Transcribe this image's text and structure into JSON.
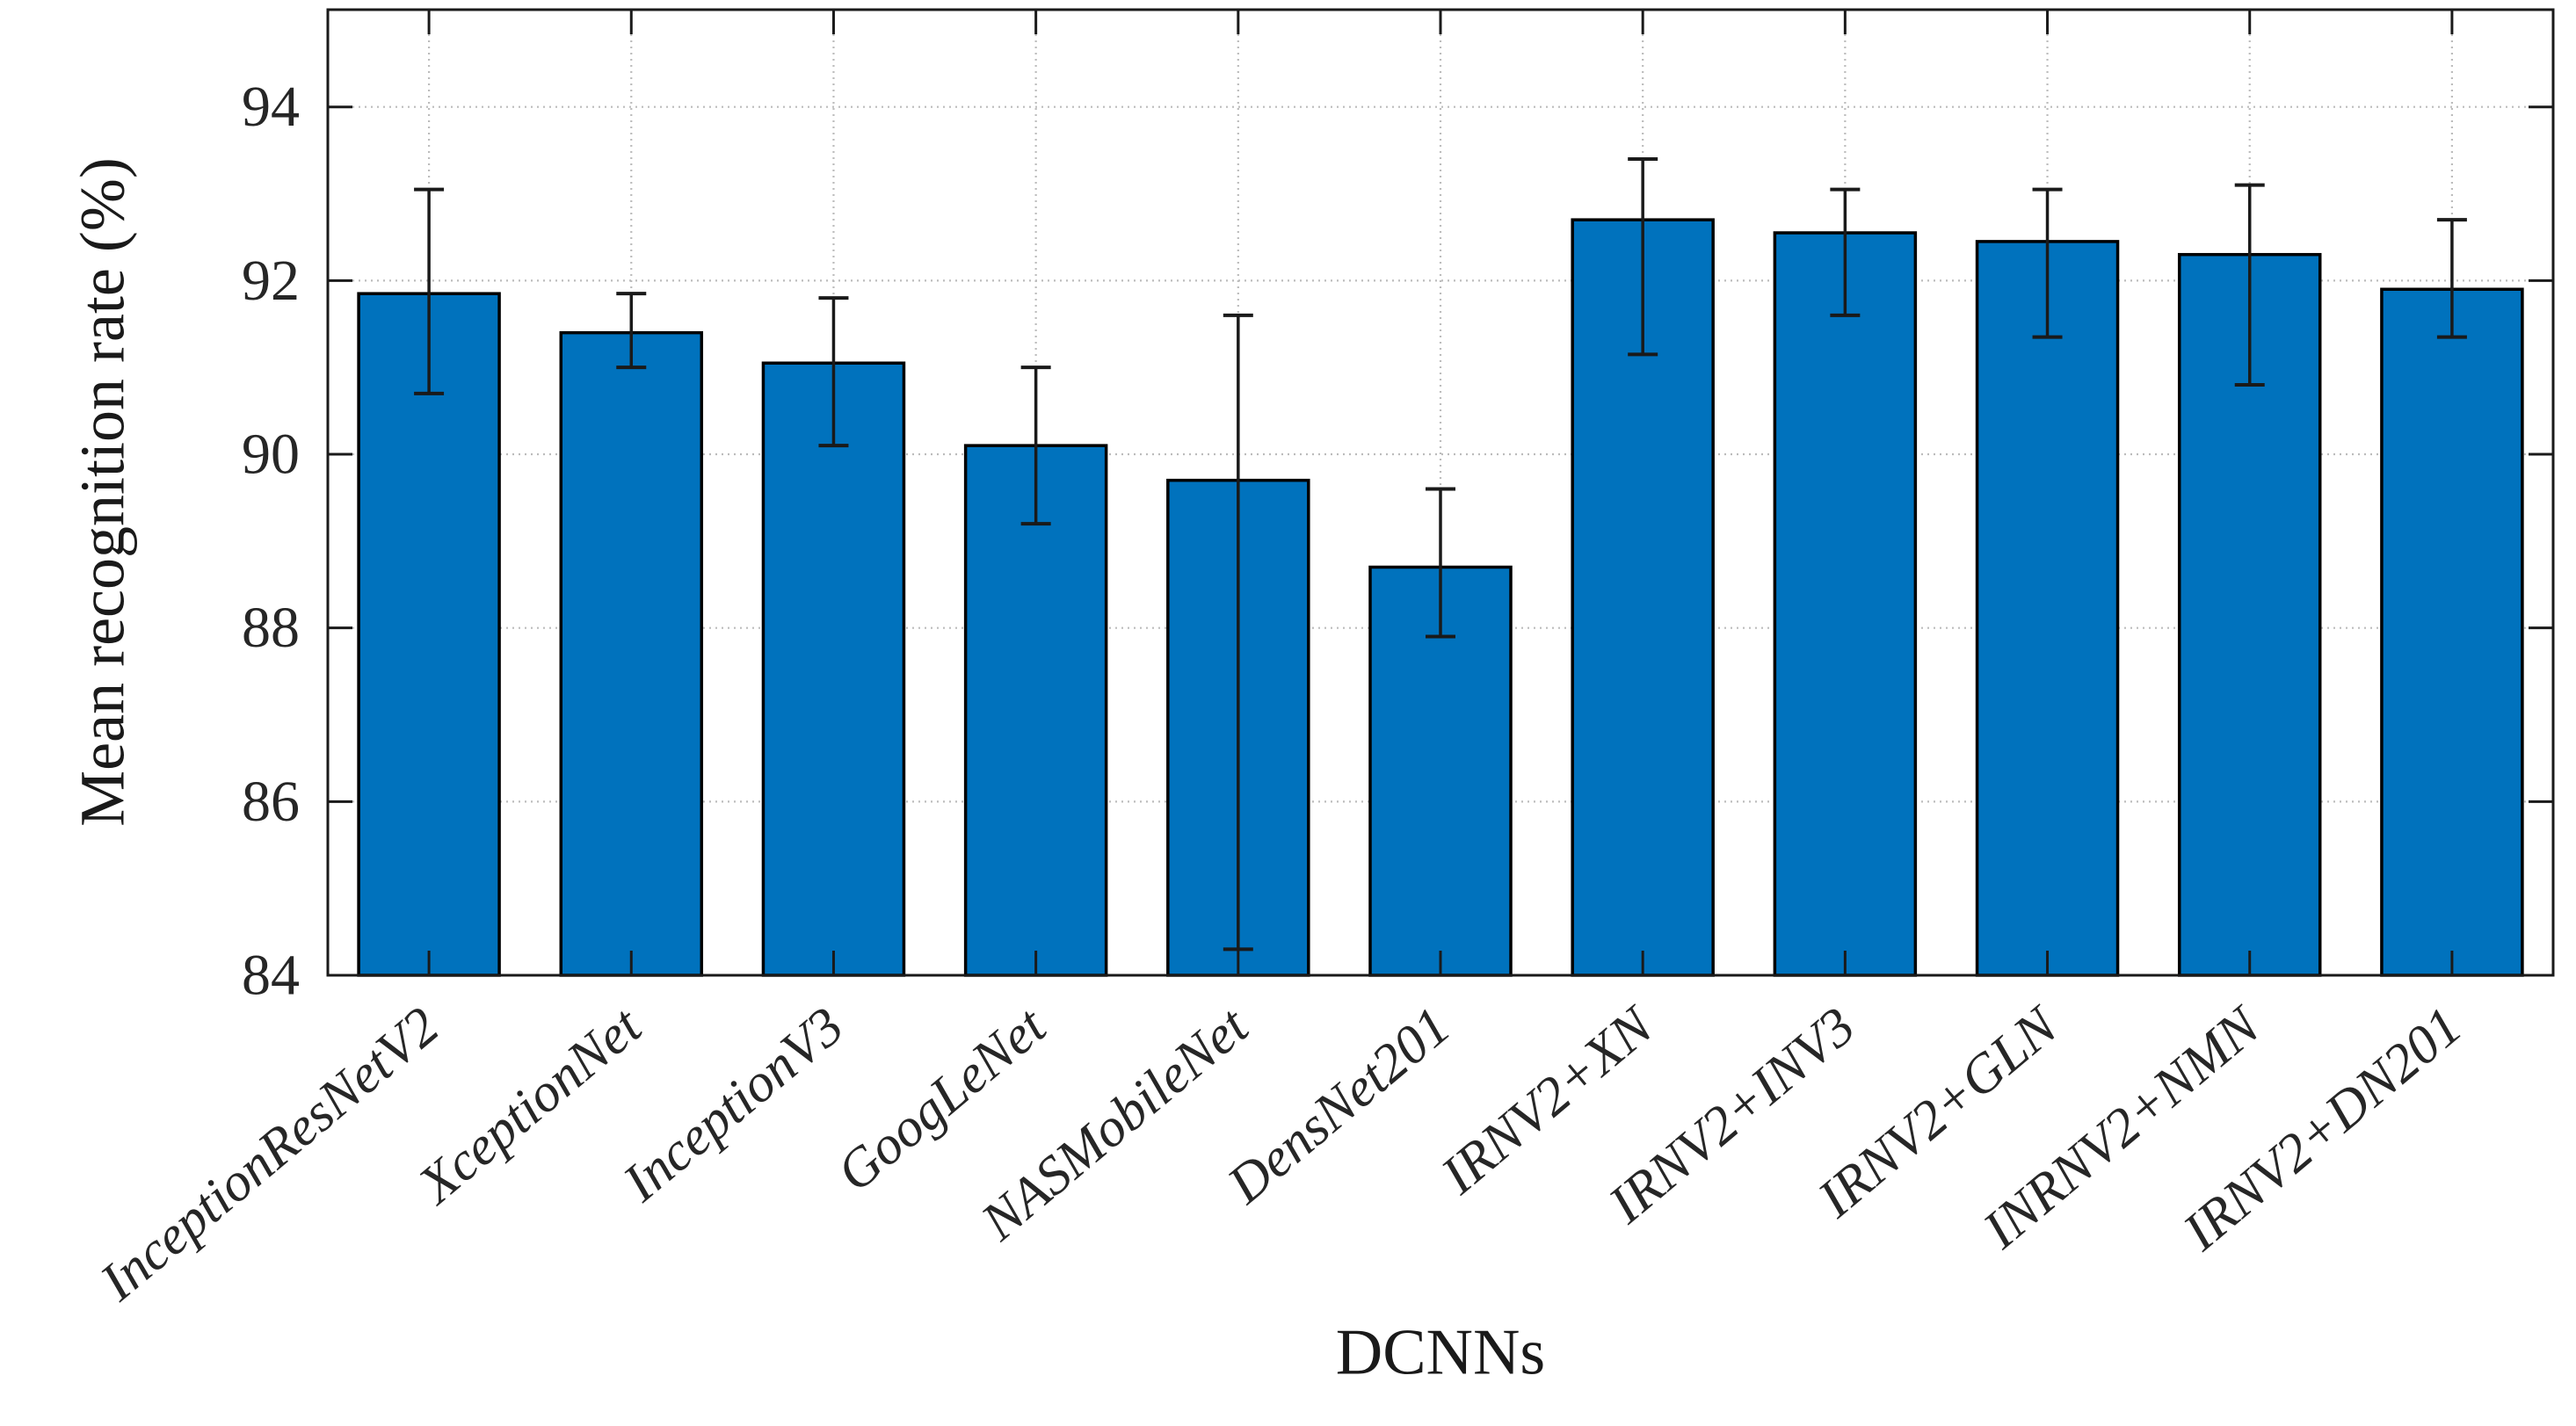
{
  "figure": {
    "background": "#ffffff"
  },
  "chart_data": {
    "type": "bar",
    "title": "",
    "xlabel": "DCNNs",
    "ylabel": "Mean recognition rate (%)",
    "categories": [
      "InceptionResNetV2",
      "XceptionNet",
      "InceptionV3",
      "GoogLeNet",
      "NASMobileNet",
      "DensNet201",
      "IRNV2+XN",
      "IRNV2+INV3",
      "IRNV2+GLN",
      "INRNV2+NMN",
      "IRNV2+DN201"
    ],
    "values": [
      91.85,
      91.4,
      91.05,
      90.1,
      89.7,
      88.7,
      92.7,
      92.55,
      92.45,
      92.3,
      91.9
    ],
    "error_low": [
      90.7,
      91.0,
      90.1,
      89.2,
      84.3,
      87.9,
      91.15,
      91.6,
      91.35,
      90.8,
      91.35
    ],
    "error_high": [
      93.05,
      91.85,
      91.8,
      91.0,
      91.6,
      89.6,
      93.4,
      93.05,
      93.05,
      93.1,
      92.7
    ],
    "yticks": [
      84,
      86,
      88,
      90,
      92,
      94
    ],
    "ylim": [
      84,
      95.12
    ],
    "grid": true,
    "legend": "none",
    "bar_color": "#0072BD",
    "bar_edge_color": "#000000",
    "error_color": "#1a1a1a",
    "grid_color": "#bcbcbc",
    "axis_color": "#1a1a1a",
    "tick_label_color": "#262626",
    "tick_label_rotation": -40
  }
}
